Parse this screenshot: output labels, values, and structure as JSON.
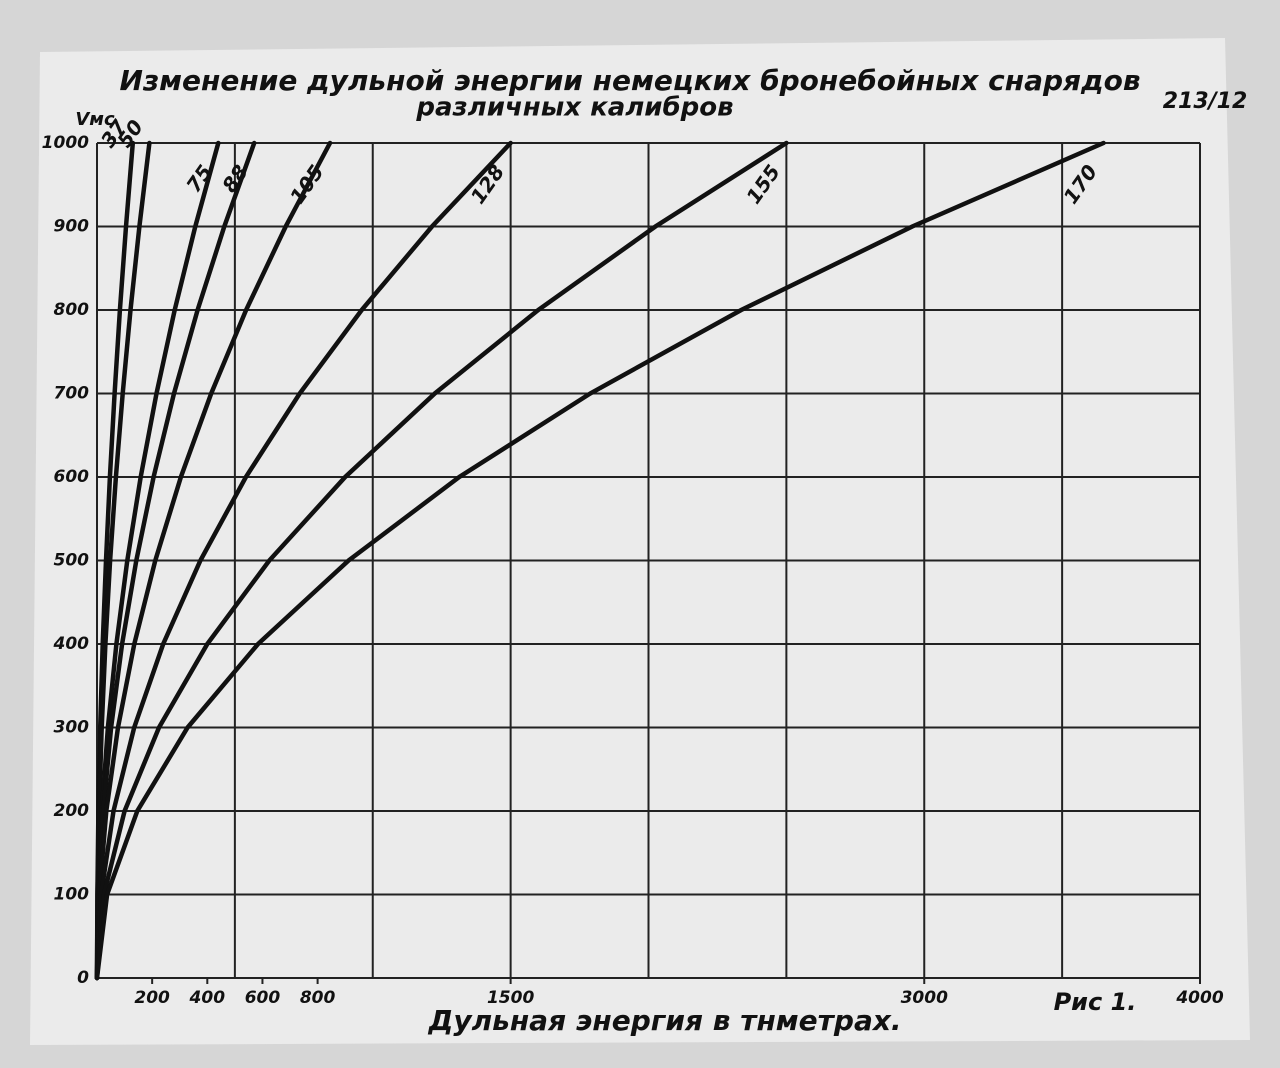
{
  "chart_data": {
    "type": "line",
    "title": "Изменение дульной энергии немецких бронебойных снарядов",
    "subtitle": "различных калибров",
    "page_number": "213/12",
    "figure_label": "Рис 1.",
    "x_label": "Дульная энергия в тнметрах.",
    "y_label": "Vмс",
    "xlim": [
      0,
      4000
    ],
    "ylim": [
      0,
      1000
    ],
    "xticks": [
      200,
      400,
      600,
      800,
      1500,
      3000,
      4000
    ],
    "xgrid": [
      500,
      1000,
      1500,
      2000,
      2500,
      3000,
      3500,
      4000
    ],
    "yticks": [
      0,
      100,
      200,
      300,
      400,
      500,
      600,
      700,
      800,
      900,
      1000
    ],
    "grid": true,
    "color": "#111111",
    "series": [
      {
        "name": "37",
        "x": [
          0,
          1.3,
          5.2,
          11.7,
          20.8,
          32.5,
          46.8,
          63.7,
          83.2,
          105.3,
          130
        ],
        "values": [
          0,
          100,
          200,
          300,
          400,
          500,
          600,
          700,
          800,
          900,
          1000
        ]
      },
      {
        "name": "50",
        "x": [
          0,
          1.9,
          7.6,
          17.1,
          30.4,
          47.5,
          68.4,
          93.1,
          121.6,
          153.9,
          190
        ],
        "values": [
          0,
          100,
          200,
          300,
          400,
          500,
          600,
          700,
          800,
          900,
          1000
        ]
      },
      {
        "name": "75",
        "x": [
          0,
          4.4,
          17.6,
          39.6,
          70.4,
          110,
          158.4,
          215.6,
          281.6,
          356.4,
          440
        ],
        "values": [
          0,
          100,
          200,
          300,
          400,
          500,
          600,
          700,
          800,
          900,
          1000
        ]
      },
      {
        "name": "88",
        "x": [
          0,
          5.7,
          22.8,
          51.3,
          91.2,
          142.5,
          205.2,
          279.3,
          364.8,
          461.7,
          570
        ],
        "values": [
          0,
          100,
          200,
          300,
          400,
          500,
          600,
          700,
          800,
          900,
          1000
        ]
      },
      {
        "name": "105",
        "x": [
          0,
          8.45,
          33.8,
          76.05,
          135.2,
          211.25,
          304.2,
          414.05,
          540.8,
          684.45,
          845
        ],
        "values": [
          0,
          100,
          200,
          300,
          400,
          500,
          600,
          700,
          800,
          900,
          1000
        ]
      },
      {
        "name": "128",
        "x": [
          0,
          15,
          60,
          135,
          240,
          375,
          540,
          735,
          960,
          1215,
          1500
        ],
        "values": [
          0,
          100,
          200,
          300,
          400,
          500,
          600,
          700,
          800,
          900,
          1000
        ]
      },
      {
        "name": "155",
        "x": [
          0,
          25,
          100,
          225,
          400,
          625,
          900,
          1225,
          1600,
          2025,
          2500
        ],
        "values": [
          0,
          100,
          200,
          300,
          400,
          500,
          600,
          700,
          800,
          900,
          1000
        ]
      },
      {
        "name": "170",
        "x": [
          0,
          36.5,
          146,
          328.5,
          584,
          912.5,
          1314,
          1788.5,
          2336,
          2956.5,
          3650
        ],
        "values": [
          0,
          100,
          200,
          300,
          400,
          500,
          600,
          700,
          800,
          900,
          1000
        ]
      }
    ]
  }
}
